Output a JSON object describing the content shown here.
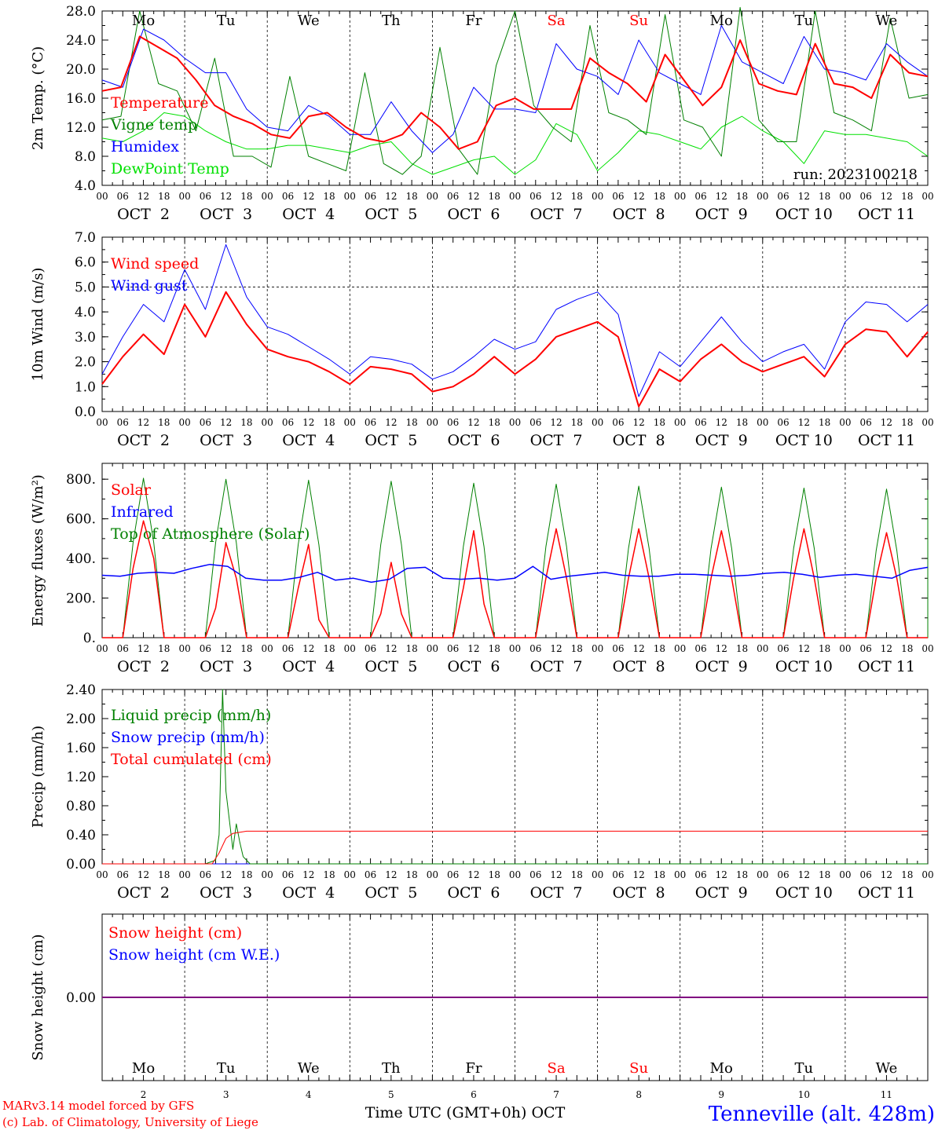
{
  "page": {
    "footer_left_1": "MARv3.14 model forced by GFS",
    "footer_left_2": "(c) Lab. of Climatology, University of Liege",
    "footer_center": "Time UTC (GMT+0h) OCT",
    "station": "Tenneville (alt. 428m)",
    "run_label": "run: 2023100218"
  },
  "colors": {
    "red": "#ff0000",
    "green": "#008000",
    "blue": "#0000ff",
    "light_green": "#00e000",
    "purple": "#800080",
    "black": "#000000"
  },
  "days": {
    "numbers": [
      "2",
      "3",
      "4",
      "5",
      "6",
      "7",
      "8",
      "9",
      "10",
      "11"
    ],
    "date_labels": [
      "OCT  2",
      "OCT  3",
      "OCT  4",
      "OCT  5",
      "OCT  6",
      "OCT  7",
      "OCT  8",
      "OCT  9",
      "OCT 10",
      "OCT 11"
    ],
    "weekdays": [
      "Mo",
      "Tu",
      "We",
      "Th",
      "Fr",
      "Sa",
      "Su",
      "Mo",
      "Tu",
      "We"
    ],
    "weekday_colors": [
      "#000000",
      "#000000",
      "#000000",
      "#000000",
      "#000000",
      "#ff0000",
      "#ff0000",
      "#000000",
      "#000000",
      "#000000"
    ],
    "hour_ticks": [
      "00",
      "06",
      "12",
      "18"
    ],
    "end_tick": "00"
  },
  "chart_data": [
    {
      "type": "line",
      "ylabel": "2m Temp. (°C)",
      "ylim": [
        4.0,
        28.0
      ],
      "yticks": [
        "4.0",
        "8.0",
        "12.0",
        "16.0",
        "20.0",
        "24.0",
        "28.0"
      ],
      "x_hours_from": "OCT 2 00 UTC",
      "x_step_hours": 6,
      "series": [
        {
          "name": "Temperature",
          "color": "#ff0000",
          "values": [
            17.0,
            17.5,
            24.5,
            23.0,
            21.5,
            18.5,
            15.0,
            13.5,
            12.5,
            11.0,
            10.5,
            13.5,
            14.0,
            12.0,
            10.5,
            10.0,
            11.0,
            14.0,
            12.0,
            9.0,
            10.0,
            15.0,
            16.0,
            14.5,
            14.5,
            14.5,
            21.5,
            19.5,
            18.0,
            15.5,
            22.0,
            18.5,
            15.0,
            17.5,
            24.0,
            18.0,
            17.0,
            16.5,
            23.5,
            18.0,
            17.5,
            16.0,
            22.0,
            19.5,
            19.0
          ]
        },
        {
          "name": "Vigne temp",
          "color": "#008000",
          "values": [
            13.0,
            13.5,
            28.0,
            18.0,
            17.0,
            11.5,
            21.5,
            8.0,
            8.0,
            6.5,
            19.0,
            8.0,
            7.0,
            6.0,
            19.5,
            7.0,
            5.5,
            8.0,
            23.0,
            9.0,
            5.5,
            20.5,
            28.0,
            15.0,
            12.0,
            10.0,
            26.0,
            14.0,
            13.0,
            11.0,
            27.5,
            13.0,
            12.0,
            8.0,
            28.5,
            13.0,
            10.0,
            10.0,
            28.0,
            14.0,
            13.0,
            11.5,
            27.0,
            16.0,
            16.5
          ]
        },
        {
          "name": "Humidex",
          "color": "#0000ff",
          "values": [
            18.5,
            17.5,
            25.5,
            24.0,
            21.5,
            19.5,
            19.5,
            14.5,
            12.0,
            11.5,
            15.0,
            13.5,
            11.0,
            11.0,
            15.5,
            11.5,
            8.5,
            11.0,
            17.5,
            14.5,
            14.5,
            14.0,
            23.5,
            20.0,
            19.0,
            16.5,
            24.0,
            19.5,
            18.0,
            16.5,
            26.0,
            21.0,
            19.5,
            18.0,
            24.5,
            20.0,
            19.5,
            18.5,
            23.5,
            21.0,
            19.0
          ]
        },
        {
          "name": "DewPoint Temp",
          "color": "#00e000",
          "values": [
            10.5,
            10.0,
            11.5,
            14.0,
            13.5,
            11.5,
            10.0,
            9.0,
            9.0,
            9.5,
            9.5,
            9.0,
            8.5,
            9.5,
            10.0,
            7.0,
            5.5,
            6.5,
            7.5,
            8.0,
            5.5,
            7.5,
            12.5,
            11.0,
            6.0,
            8.5,
            11.5,
            11.0,
            10.0,
            9.0,
            12.0,
            13.5,
            11.5,
            10.0,
            7.0,
            11.5,
            11.0,
            11.0,
            10.5,
            10.0,
            8.0
          ]
        }
      ]
    },
    {
      "type": "line",
      "ylabel": "10m Wind (m/s)",
      "ylim": [
        0.0,
        7.0
      ],
      "yticks": [
        "0.0",
        "1.0",
        "2.0",
        "3.0",
        "4.0",
        "5.0",
        "6.0",
        "7.0"
      ],
      "hline": 5.0,
      "x_hours_from": "OCT 2 00 UTC",
      "x_step_hours": 6,
      "series": [
        {
          "name": "Wind speed",
          "color": "#ff0000",
          "values": [
            1.1,
            2.2,
            3.1,
            2.3,
            4.3,
            3.0,
            4.8,
            3.5,
            2.5,
            2.2,
            2.0,
            1.6,
            1.1,
            1.8,
            1.7,
            1.5,
            0.8,
            1.0,
            1.5,
            2.2,
            1.5,
            2.1,
            3.0,
            3.3,
            3.6,
            3.0,
            0.2,
            1.7,
            1.2,
            2.1,
            2.7,
            2.0,
            1.6,
            1.9,
            2.2,
            1.4,
            2.7,
            3.3,
            3.2,
            2.2,
            3.2
          ]
        },
        {
          "name": "Wind gust",
          "color": "#0000ff",
          "values": [
            1.5,
            3.0,
            4.3,
            3.6,
            5.7,
            4.1,
            6.7,
            4.6,
            3.4,
            3.1,
            2.6,
            2.1,
            1.5,
            2.2,
            2.1,
            1.9,
            1.3,
            1.6,
            2.2,
            2.9,
            2.5,
            2.8,
            4.1,
            4.5,
            4.8,
            3.9,
            0.6,
            2.4,
            1.8,
            2.8,
            3.8,
            2.8,
            2.0,
            2.4,
            2.7,
            1.7,
            3.6,
            4.4,
            4.3,
            3.6,
            4.3
          ]
        }
      ]
    },
    {
      "type": "line",
      "ylabel": "Energy fluxes (W/m²)",
      "ylim": [
        0,
        880
      ],
      "yticks": [
        "0.",
        "200.",
        "400.",
        "600.",
        "800."
      ],
      "x_hours_from": "OCT 2 00 UTC",
      "x_step_hours": 3,
      "series": [
        {
          "name": "Solar",
          "color": "#ff0000",
          "values": [
            0,
            0,
            0,
            350,
            590,
            400,
            0,
            0,
            0,
            0,
            0,
            150,
            480,
            300,
            0,
            0,
            0,
            0,
            0,
            250,
            470,
            90,
            0,
            0,
            0,
            0,
            0,
            120,
            380,
            120,
            0,
            0,
            0,
            0,
            0,
            250,
            540,
            170,
            0,
            0,
            0,
            0,
            0,
            300,
            550,
            300,
            0,
            0,
            0,
            0,
            0,
            300,
            550,
            300,
            0,
            0,
            0,
            0,
            0,
            300,
            540,
            300,
            0,
            0,
            0,
            0,
            0,
            300,
            550,
            300,
            0,
            0,
            0,
            0,
            0,
            300,
            530,
            300,
            0,
            0,
            0
          ]
        },
        {
          "name": "Infrared",
          "color": "#0000ff",
          "values": [
            315,
            310,
            325,
            330,
            325,
            350,
            370,
            360,
            300,
            290,
            290,
            305,
            330,
            290,
            300,
            280,
            295,
            350,
            355,
            300,
            295,
            300,
            290,
            300,
            360,
            295,
            310,
            320,
            330,
            315,
            310,
            310,
            320,
            320,
            315,
            310,
            315,
            325,
            330,
            320,
            305,
            315,
            320,
            310,
            300,
            340,
            355
          ]
        },
        {
          "name": "Top of Atmosphere (Solar)",
          "color": "#008000",
          "values": [
            0,
            0,
            0,
            480,
            805,
            480,
            0,
            0,
            0,
            0,
            0,
            480,
            800,
            480,
            0,
            0,
            0,
            0,
            0,
            470,
            795,
            470,
            0,
            0,
            0,
            0,
            0,
            470,
            790,
            470,
            0,
            0,
            0,
            0,
            0,
            460,
            780,
            460,
            0,
            0,
            0,
            0,
            0,
            460,
            775,
            460,
            0,
            0,
            0,
            0,
            0,
            450,
            765,
            450,
            0,
            0,
            0,
            0,
            0,
            450,
            760,
            450,
            0,
            0,
            0,
            0,
            0,
            450,
            755,
            450,
            0,
            0,
            0,
            0,
            0,
            440,
            750,
            440,
            0,
            0,
            0,
            0,
            0,
            440,
            745,
            440,
            0,
            0,
            0
          ]
        }
      ]
    },
    {
      "type": "line",
      "ylabel": "Precip (mm/h)",
      "ylim": [
        0.0,
        2.4
      ],
      "yticks": [
        "0.00",
        "0.40",
        "0.80",
        "1.20",
        "1.60",
        "2.00",
        "2.40"
      ],
      "x_hours_from": "OCT 2 00 UTC",
      "series": [
        {
          "name": "Liquid precip (mm/h)",
          "color": "#008000",
          "points": [
            [
              0,
              0
            ],
            [
              30,
              0
            ],
            [
              33,
              0.05
            ],
            [
              34,
              0.4
            ],
            [
              35,
              2.4
            ],
            [
              36,
              1.0
            ],
            [
              37,
              0.6
            ],
            [
              38,
              0.2
            ],
            [
              39,
              0.55
            ],
            [
              40,
              0.3
            ],
            [
              41,
              0.1
            ],
            [
              43,
              0
            ],
            [
              240,
              0
            ]
          ]
        },
        {
          "name": "Snow precip (mm/h)",
          "color": "#0000ff",
          "points": [
            [
              0,
              0
            ],
            [
              240,
              0
            ]
          ]
        },
        {
          "name": "Total cumulated (cm)",
          "color": "#ff0000",
          "points": [
            [
              0,
              0
            ],
            [
              32,
              0
            ],
            [
              34,
              0.15
            ],
            [
              36,
              0.35
            ],
            [
              38,
              0.42
            ],
            [
              42,
              0.45
            ],
            [
              240,
              0.45
            ]
          ]
        }
      ]
    },
    {
      "type": "line",
      "ylabel": "Snow height (cm)",
      "ytick": "0.00",
      "x_hours_from": "OCT 2 00 UTC",
      "series": [
        {
          "name": "Snow height (cm)",
          "color": "#ff0000",
          "values": [
            0,
            0
          ]
        },
        {
          "name": "Snow height (cm W.E.)",
          "color": "#0000ff",
          "values": [
            0,
            0
          ]
        }
      ]
    }
  ]
}
